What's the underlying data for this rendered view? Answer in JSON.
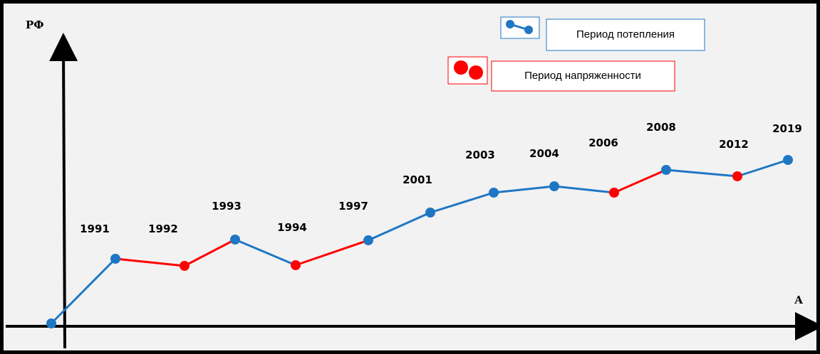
{
  "y_axis_label": "РФ",
  "x_axis_label": "А",
  "legend": [
    {
      "name": "Период потепления",
      "color": "#1f77c4"
    },
    {
      "name": "Период напряженности",
      "color": "#ff0000"
    }
  ],
  "points": [
    {
      "label": null,
      "color": "#1f77c4"
    },
    {
      "label": "1991",
      "color": "#1f77c4"
    },
    {
      "label": "1992",
      "color": "#ff0000"
    },
    {
      "label": "1993",
      "color": "#1f77c4"
    },
    {
      "label": "1994",
      "color": "#ff0000"
    },
    {
      "label": "1997",
      "color": "#1f77c4"
    },
    {
      "label": "2001",
      "color": "#1f77c4"
    },
    {
      "label": "2003",
      "color": "#1f77c4"
    },
    {
      "label": "2004",
      "color": "#1f77c4"
    },
    {
      "label": "2006",
      "color": "#ff0000"
    },
    {
      "label": "2008",
      "color": "#1f77c4"
    },
    {
      "label": "2012",
      "color": "#ff0000"
    },
    {
      "label": "2019",
      "color": "#1f77c4"
    }
  ],
  "segment_colors": [
    "#1f77c4",
    "#ff0000",
    "#ff0000",
    "#1f77c4",
    "#ff0000",
    "#1f77c4",
    "#1f77c4",
    "#1f77c4",
    "#1f77c4",
    "#ff0000",
    "#1f77c4",
    "#1f77c4"
  ]
}
